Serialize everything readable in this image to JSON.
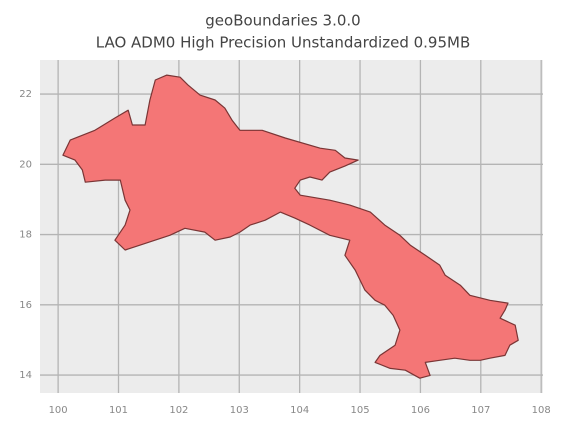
{
  "chart_data": {
    "type": "map",
    "title": "geoBoundaries 3.0.0",
    "subtitle": "LAO ADM0 High Precision Unstandardized 0.95MB",
    "xlim": [
      99.7,
      108.03
    ],
    "ylim": [
      13.49,
      22.97
    ],
    "xticks": [
      100,
      101,
      102,
      103,
      104,
      105,
      106,
      107,
      108
    ],
    "yticks": [
      14,
      16,
      18,
      20,
      22
    ],
    "grid": true,
    "color": "#f47676",
    "edge_color": "#7a3535",
    "outline": {
      "lon": [
        100.08,
        100.2,
        100.61,
        100.94,
        101.16,
        101.23,
        101.44,
        101.52,
        101.61,
        101.8,
        102.02,
        102.15,
        102.35,
        102.6,
        102.76,
        102.88,
        103.01,
        103.38,
        103.76,
        104.34,
        104.59,
        104.75,
        104.97,
        104.75,
        104.5,
        104.37,
        104.17,
        104.01,
        103.92,
        104.01,
        104.5,
        104.83,
        105.17,
        105.41,
        105.66,
        105.83,
        106.08,
        106.32,
        106.41,
        106.66,
        106.82,
        107.15,
        107.45,
        107.4,
        107.32,
        107.57,
        107.62,
        107.48,
        107.4,
        107.15,
        106.99,
        106.82,
        106.57,
        106.32,
        106.08,
        106.16,
        105.99,
        105.75,
        105.5,
        105.25,
        105.33,
        105.58,
        105.66,
        105.55,
        105.41,
        105.25,
        105.08,
        104.92,
        104.75,
        104.83,
        104.5,
        104.17,
        103.92,
        103.68,
        103.43,
        103.18,
        103.01,
        102.85,
        102.6,
        102.43,
        102.1,
        101.85,
        101.36,
        101.11,
        100.94,
        101.11,
        101.19,
        101.11,
        101.03,
        100.78,
        100.45,
        100.4,
        100.28
      ],
      "lat": [
        20.26,
        20.69,
        20.97,
        21.32,
        21.54,
        21.12,
        21.12,
        21.83,
        22.4,
        22.54,
        22.48,
        22.26,
        21.97,
        21.83,
        21.6,
        21.26,
        20.97,
        20.97,
        20.75,
        20.46,
        20.4,
        20.18,
        20.12,
        19.95,
        19.78,
        19.55,
        19.64,
        19.55,
        19.32,
        19.12,
        18.98,
        18.84,
        18.64,
        18.27,
        17.98,
        17.7,
        17.41,
        17.13,
        16.84,
        16.56,
        16.27,
        16.13,
        16.05,
        15.85,
        15.62,
        15.42,
        14.99,
        14.85,
        14.56,
        14.48,
        14.42,
        14.42,
        14.48,
        14.42,
        14.36,
        13.99,
        13.91,
        14.14,
        14.19,
        14.36,
        14.56,
        14.85,
        15.28,
        15.7,
        15.99,
        16.13,
        16.42,
        16.99,
        17.41,
        17.84,
        17.98,
        18.27,
        18.47,
        18.64,
        18.41,
        18.27,
        18.07,
        17.93,
        17.84,
        18.07,
        18.18,
        17.98,
        17.7,
        17.56,
        17.84,
        18.27,
        18.7,
        18.98,
        19.55,
        19.55,
        19.49,
        19.84,
        20.12
      ]
    }
  }
}
